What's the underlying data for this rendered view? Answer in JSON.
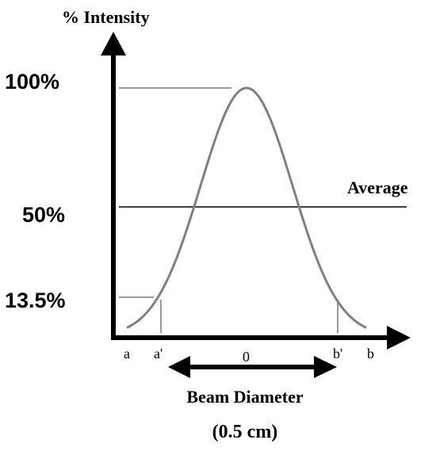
{
  "diagram": {
    "y_axis_title": "% Intensity",
    "y_labels": {
      "full": "100%",
      "half": "50%",
      "low": "13.5%"
    },
    "average_label": "Average",
    "x_labels": {
      "a": "a",
      "a_prime": "a'",
      "zero": "0",
      "b_prime": "b'",
      "b": "b"
    },
    "caption": {
      "line1": "Beam Diameter",
      "line2": "(0.5 cm)"
    },
    "colors": {
      "axis": "#000000",
      "curve": "#808080",
      "guide": "#999999",
      "average_line": "#000000"
    }
  }
}
